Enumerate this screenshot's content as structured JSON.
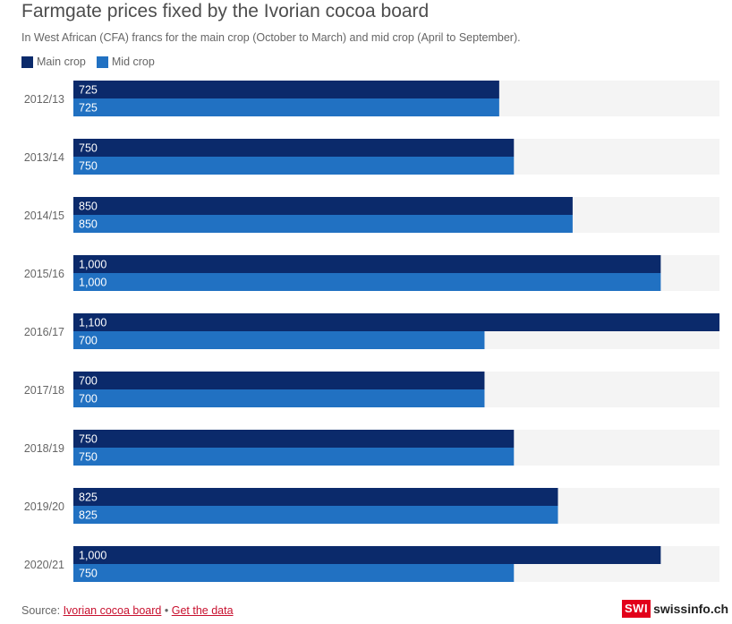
{
  "title": "Farmgate prices fixed by the Ivorian cocoa board",
  "subtitle": "In West African (CFA) francs for the main crop (October to March) and mid crop (April to September).",
  "legend": {
    "main_label": "Main crop",
    "mid_label": "Mid crop"
  },
  "colors": {
    "main": "#0b2a6b",
    "mid": "#2171c2",
    "track": "#f4f4f4"
  },
  "chart_data": {
    "type": "bar",
    "orientation": "horizontal",
    "categories": [
      "2012/13",
      "2013/14",
      "2014/15",
      "2015/16",
      "2016/17",
      "2017/18",
      "2018/19",
      "2019/20",
      "2020/21"
    ],
    "series": [
      {
        "name": "Main crop",
        "values": [
          725,
          750,
          850,
          1000,
          1100,
          700,
          750,
          825,
          1000
        ],
        "labels": [
          "725",
          "750",
          "850",
          "1,000",
          "1,100",
          "700",
          "750",
          "825",
          "1,000"
        ]
      },
      {
        "name": "Mid crop",
        "values": [
          725,
          750,
          850,
          1000,
          700,
          700,
          750,
          825,
          750
        ],
        "labels": [
          "725",
          "750",
          "850",
          "1,000",
          "700",
          "700",
          "750",
          "825",
          "750"
        ]
      }
    ],
    "xlim": [
      0,
      1100
    ],
    "title": "Farmgate prices fixed by the Ivorian cocoa board",
    "xlabel": "",
    "ylabel": "",
    "legend_position": "top-left",
    "grid": false
  },
  "footer": {
    "source_prefix": "Source:",
    "source_link": "Ivorian cocoa board",
    "separator": "•",
    "data_link": "Get the data"
  },
  "brand": {
    "box": "SWI",
    "text": "swissinfo.ch"
  }
}
